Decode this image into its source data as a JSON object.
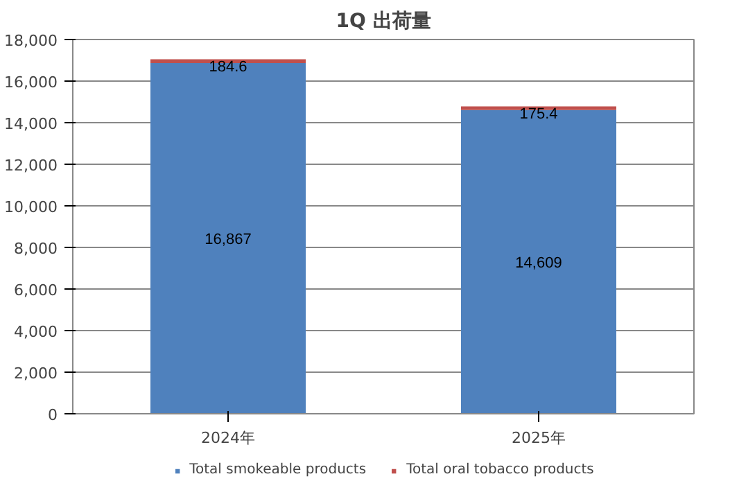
{
  "chart_data": {
    "type": "bar",
    "title": "1Q 出荷量",
    "categories": [
      "2024年",
      "2025年"
    ],
    "stacked": true,
    "series": [
      {
        "name": "Total smokeable products",
        "color": "#4f81bd",
        "values": [
          16867,
          14609
        ],
        "value_labels": [
          "16,867",
          "14,609"
        ]
      },
      {
        "name": "Total oral tobacco products",
        "color": "#c0504d",
        "values": [
          184.6,
          175.4
        ],
        "value_labels": [
          "184.6",
          "175.4"
        ]
      }
    ],
    "ylim": [
      0,
      18000
    ],
    "yticks": [
      0,
      {
        "value": 2000,
        "label": "2,000"
      },
      {
        "value": 4000,
        "label": "4,000"
      },
      {
        "value": 6000,
        "label": "6,000"
      },
      {
        "value": 8000,
        "label": "8,000"
      },
      {
        "value": 10000,
        "label": "10,000"
      },
      {
        "value": 12000,
        "label": "12,000"
      },
      {
        "value": 14000,
        "label": "14,000"
      },
      {
        "value": 16000,
        "label": "16,000"
      },
      {
        "value": 18000,
        "label": "18,000"
      }
    ],
    "grid": "y",
    "legend": "bottom"
  }
}
